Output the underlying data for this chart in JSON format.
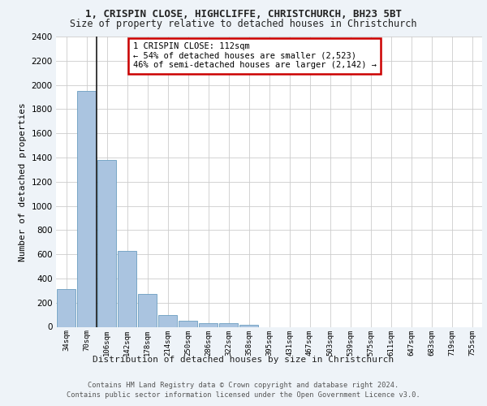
{
  "title_line1": "1, CRISPIN CLOSE, HIGHCLIFFE, CHRISTCHURCH, BH23 5BT",
  "title_line2": "Size of property relative to detached houses in Christchurch",
  "xlabel": "Distribution of detached houses by size in Christchurch",
  "ylabel": "Number of detached properties",
  "categories": [
    "34sqm",
    "70sqm",
    "106sqm",
    "142sqm",
    "178sqm",
    "214sqm",
    "250sqm",
    "286sqm",
    "322sqm",
    "358sqm",
    "395sqm",
    "431sqm",
    "467sqm",
    "503sqm",
    "539sqm",
    "575sqm",
    "611sqm",
    "647sqm",
    "683sqm",
    "719sqm",
    "755sqm"
  ],
  "values": [
    315,
    1950,
    1380,
    630,
    275,
    100,
    47,
    33,
    28,
    20,
    0,
    0,
    0,
    0,
    0,
    0,
    0,
    0,
    0,
    0,
    0
  ],
  "bar_color": "#aac4e0",
  "bar_edge_color": "#6a9ec0",
  "vline_color": "#1a1a1a",
  "annotation_text": "1 CRISPIN CLOSE: 112sqm\n← 54% of detached houses are smaller (2,523)\n46% of semi-detached houses are larger (2,142) →",
  "annotation_box_color": "#ffffff",
  "annotation_box_edge": "#cc0000",
  "ylim": [
    0,
    2400
  ],
  "yticks": [
    0,
    200,
    400,
    600,
    800,
    1000,
    1200,
    1400,
    1600,
    1800,
    2000,
    2200,
    2400
  ],
  "footer_line1": "Contains HM Land Registry data © Crown copyright and database right 2024.",
  "footer_line2": "Contains public sector information licensed under the Open Government Licence v3.0.",
  "background_color": "#eef3f8",
  "plot_bg_color": "#ffffff",
  "grid_color": "#cccccc"
}
